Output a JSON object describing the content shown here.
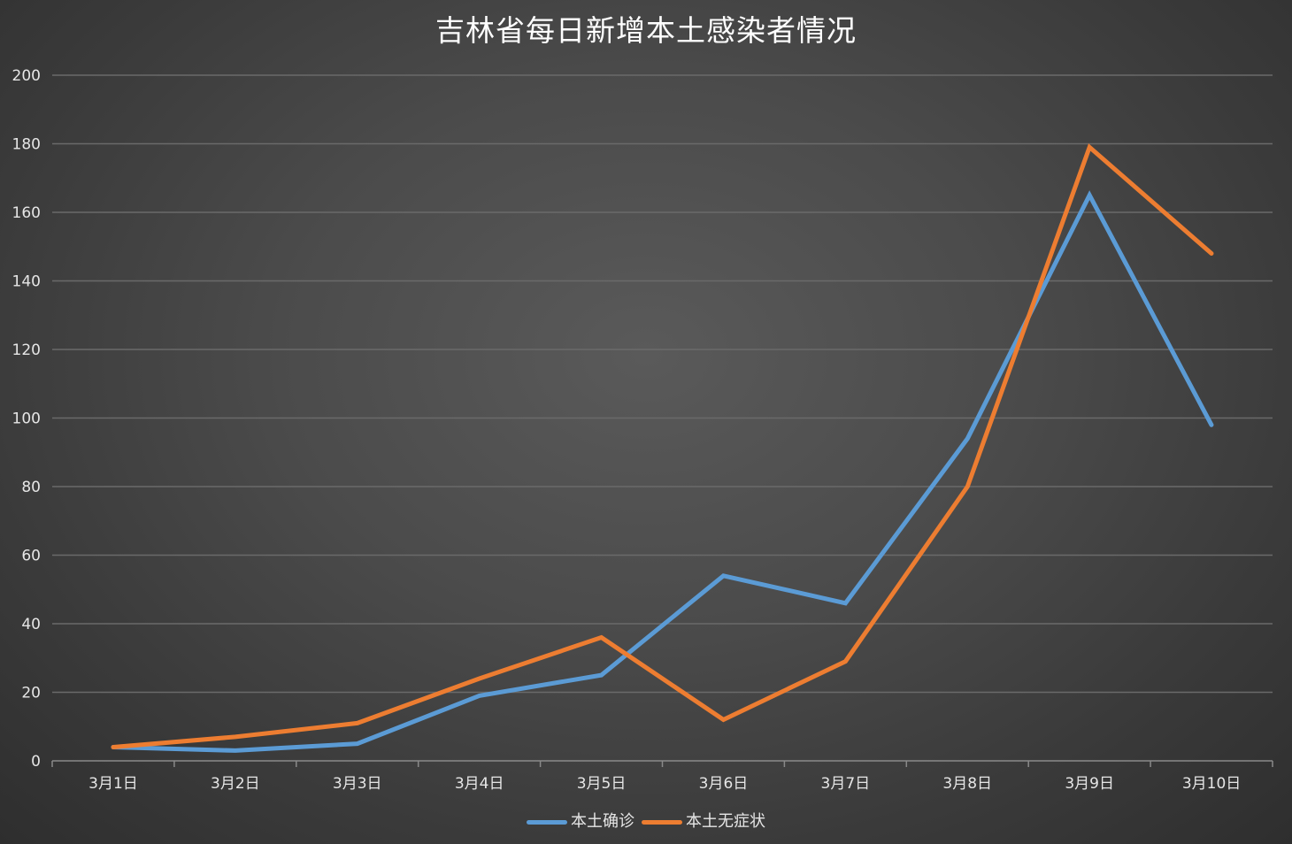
{
  "chart_data": {
    "type": "line",
    "title": "吉林省每日新增本土感染者情况",
    "categories": [
      "3月1日",
      "3月2日",
      "3月3日",
      "3月4日",
      "3月5日",
      "3月6日",
      "3月7日",
      "3月8日",
      "3月9日",
      "3月10日"
    ],
    "series": [
      {
        "name": "本土确诊",
        "color": "#5b9bd5",
        "values": [
          4,
          3,
          5,
          19,
          25,
          54,
          46,
          94,
          165,
          98
        ]
      },
      {
        "name": "本土无症状",
        "color": "#ed7d31",
        "values": [
          4,
          7,
          11,
          24,
          36,
          12,
          29,
          80,
          179,
          148
        ]
      }
    ],
    "ylim": [
      0,
      200
    ],
    "yticks": [
      "0",
      "20",
      "40",
      "60",
      "80",
      "100",
      "120",
      "140",
      "160",
      "180",
      "200"
    ],
    "grid": true,
    "legend_position": "bottom-center",
    "background_color": "#4a4a4a",
    "text_color": "#e6e6e6",
    "grid_color": "#6a6a6a"
  }
}
